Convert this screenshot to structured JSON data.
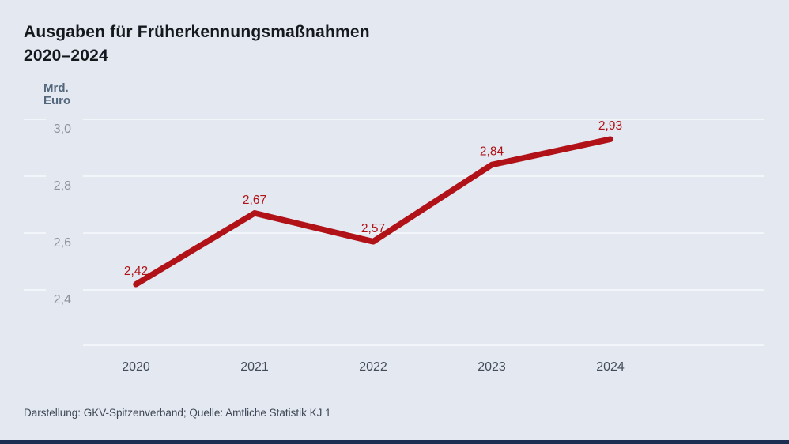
{
  "header": {
    "title_line1": "Ausgaben für Früherkennungsmaßnahmen",
    "title_line2": "2020–2024"
  },
  "chart_data": {
    "type": "line",
    "title": "Ausgaben für Früherkennungsmaßnahmen 2020–2024",
    "ylabel": "Mrd. Euro",
    "unit_label_lines": [
      "Mrd.",
      "Euro"
    ],
    "categories": [
      "2020",
      "2021",
      "2022",
      "2023",
      "2024"
    ],
    "values": [
      2.42,
      2.67,
      2.57,
      2.84,
      2.93
    ],
    "value_labels": [
      "2,42",
      "2,67",
      "2,57",
      "2,84",
      "2,93"
    ],
    "yticks": [
      {
        "value": 3.0,
        "label": "3,0"
      },
      {
        "value": 2.8,
        "label": "2,8"
      },
      {
        "value": 2.6,
        "label": "2,6"
      },
      {
        "value": 2.4,
        "label": "2,4"
      }
    ],
    "ylim": [
      2.2,
      3.05
    ],
    "grid": true,
    "legend": "none",
    "line_color": "#b01217",
    "gridline_color": "#f7f9fc"
  },
  "footer": {
    "source": "Darstellung: GKV-Spitzenverband; Quelle: Amtliche Statistik KJ 1"
  },
  "colors": {
    "background": "#e4e8f0",
    "accent_red": "#b01217",
    "brand_bar_navy": "#1c2e52",
    "title_text": "#15181d",
    "unit_text": "#54687d",
    "tick_text": "#8d939c",
    "year_text": "#424c5a",
    "source_text": "#3e4755"
  }
}
